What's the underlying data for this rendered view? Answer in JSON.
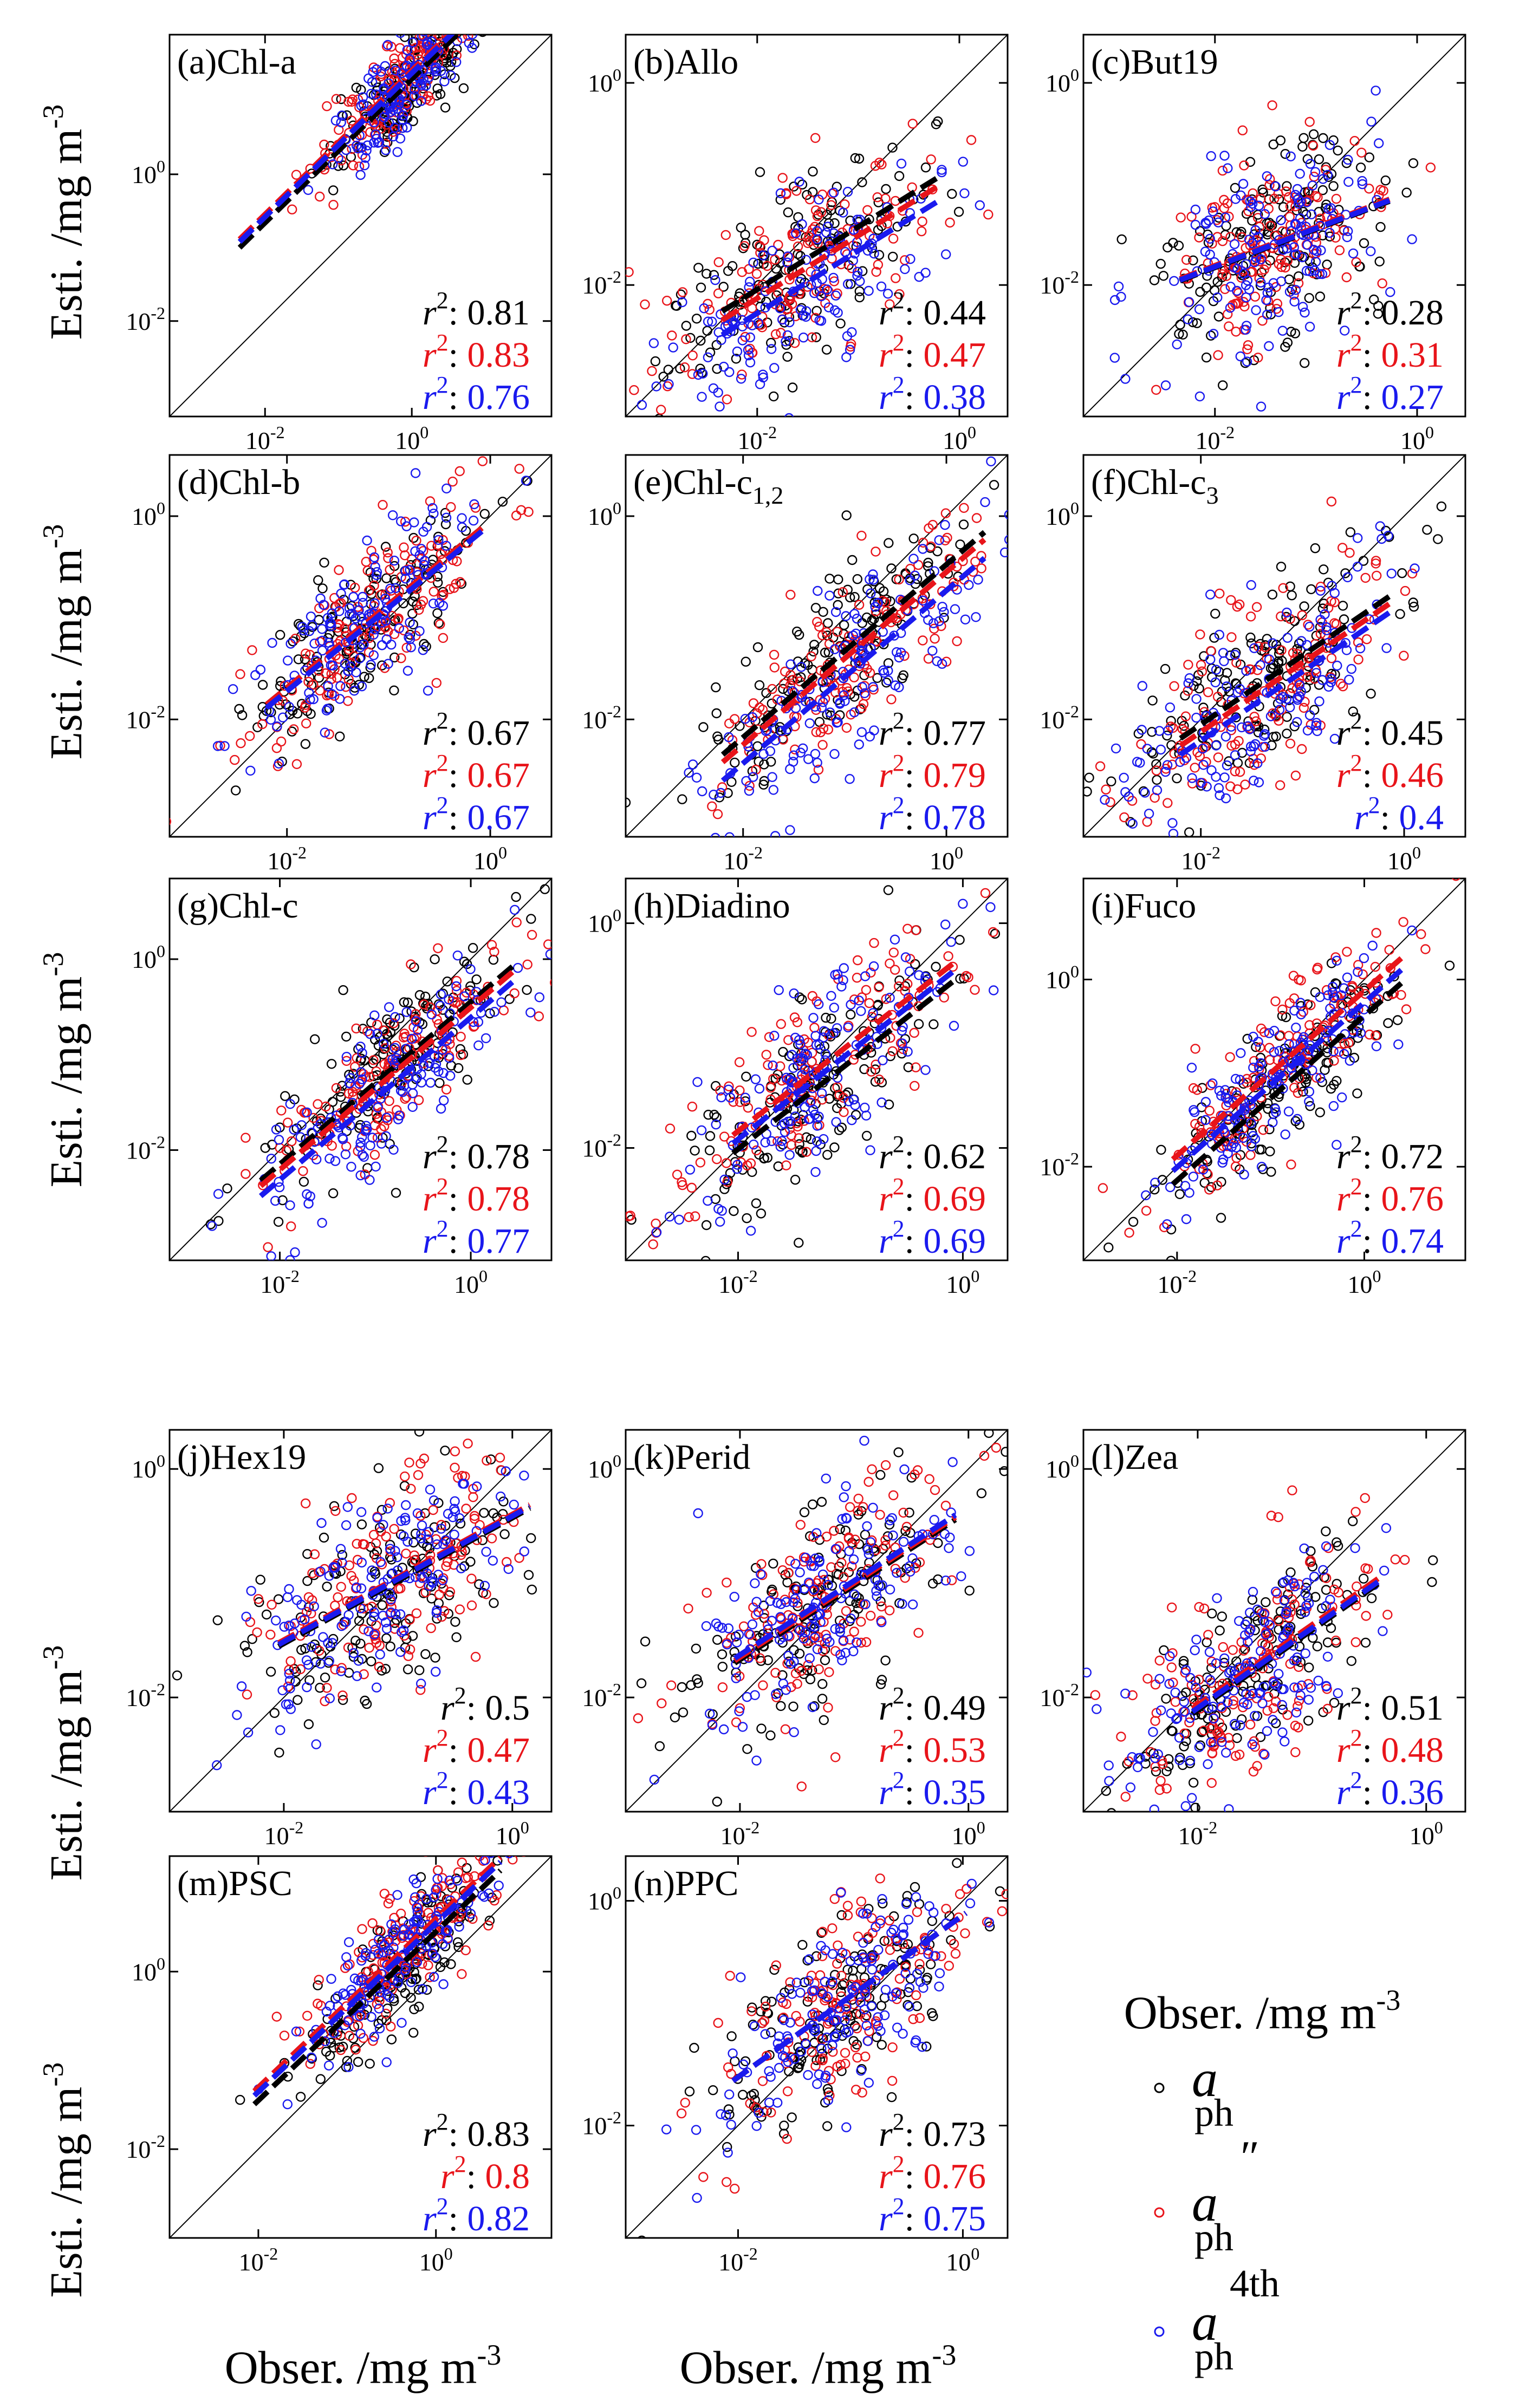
{
  "figure": {
    "y_axis_label": "Esti. /mg m",
    "x_axis_label": "Obser. /mg m",
    "unit_exponent": "-3",
    "colors": {
      "aph": "#000000",
      "aph_dd": "#e8141a",
      "aph_4th": "#1a1aee"
    }
  },
  "legend": {
    "items": [
      {
        "symbol": "a",
        "subscript": "ph",
        "superscript": "",
        "color": "#000000"
      },
      {
        "symbol": "a",
        "subscript": "ph",
        "superscript": "″",
        "color": "#e8141a"
      },
      {
        "symbol": "a",
        "subscript": "ph",
        "superscript": "4th",
        "color": "#1a1aee"
      }
    ]
  },
  "chart_data": [
    {
      "type": "scatter",
      "panel": "(a)",
      "name": "Chl-a",
      "sub": "",
      "lim": [
        0.0005,
        80
      ],
      "x_ticks": [
        "10^-2",
        "10^0"
      ],
      "y_ticks": [
        "10^-2",
        "10^0"
      ],
      "r2_label": "r",
      "r2": [
        "0.81",
        "0.83",
        "0.76"
      ],
      "fit_start": [
        0.1,
        0.13,
        0.12
      ],
      "slope": 0.98,
      "center": 0.8,
      "spread": 0.9
    },
    {
      "type": "scatter",
      "panel": "(b)",
      "name": "Allo",
      "sub": "",
      "lim": [
        0.0005,
        3
      ],
      "x_ticks": [
        "10^-2",
        "10^0"
      ],
      "y_ticks": [
        "10^-2",
        "10^0"
      ],
      "r2_label": "r",
      "r2": [
        "0.44",
        "0.47",
        "0.38"
      ],
      "fit_start": [
        0.0055,
        0.0045,
        0.0032
      ],
      "slope": 0.62,
      "center": 0.025,
      "spread": 1.1
    },
    {
      "type": "scatter",
      "panel": "(c)",
      "name": "But19",
      "sub": "",
      "lim": [
        0.0005,
        3
      ],
      "x_ticks": [
        "10^-2",
        "10^0"
      ],
      "y_ticks": [
        "10^-2",
        "10^0"
      ],
      "r2_label": "r",
      "r2": [
        "0.28",
        "0.31",
        "0.27"
      ],
      "fit_start": [
        0.011,
        0.0115,
        0.0112
      ],
      "slope": 0.38,
      "center": 0.04,
      "spread": 0.9
    },
    {
      "type": "scatter",
      "panel": "(d)",
      "name": "Chl-b",
      "sub": "",
      "lim": [
        0.0007,
        4
      ],
      "x_ticks": [
        "10^-2",
        "10^0"
      ],
      "y_ticks": [
        "10^-2",
        "10^0"
      ],
      "r2_label": "r",
      "r2": [
        "0.67",
        "0.67",
        "0.67"
      ],
      "fit_start": [
        0.014,
        0.014,
        0.013
      ],
      "slope": 0.82,
      "center": 0.06,
      "spread": 0.95
    },
    {
      "type": "scatter",
      "panel": "(e)",
      "name": "Chl-c",
      "sub": "1,2",
      "lim": [
        0.0007,
        4
      ],
      "x_ticks": [
        "10^-2",
        "10^0"
      ],
      "y_ticks": [
        "10^-2",
        "10^0"
      ],
      "r2_label": "r",
      "r2": [
        "0.77",
        "0.79",
        "0.78"
      ],
      "fit_start": [
        0.0045,
        0.0038,
        0.0025
      ],
      "slope": 0.85,
      "center": 0.1,
      "spread": 1.1
    },
    {
      "type": "scatter",
      "panel": "(f)",
      "name": "Chl-c",
      "sub": "3",
      "lim": [
        0.0007,
        4
      ],
      "x_ticks": [
        "10^-2",
        "10^0"
      ],
      "y_ticks": [
        "10^-2",
        "10^0"
      ],
      "r2_label": "r",
      "r2": [
        "0.45",
        "0.46",
        "0.4"
      ],
      "fit_start": [
        0.0065,
        0.0055,
        0.0045
      ],
      "slope": 0.68,
      "center": 0.03,
      "spread": 1.1
    },
    {
      "type": "scatter",
      "panel": "(g)",
      "name": "Chl-c",
      "sub": "",
      "lim": [
        0.0007,
        7
      ],
      "x_ticks": [
        "10^-2",
        "10^0"
      ],
      "y_ticks": [
        "10^-2",
        "10^0"
      ],
      "r2_label": "r",
      "r2": [
        "0.78",
        "0.78",
        "0.77"
      ],
      "fit_start": [
        0.0048,
        0.0042,
        0.0033
      ],
      "slope": 0.85,
      "center": 0.12,
      "spread": 1.1
    },
    {
      "type": "scatter",
      "panel": "(h)",
      "name": "Diadino",
      "sub": "",
      "lim": [
        0.001,
        2.5
      ],
      "x_ticks": [
        "10^-2",
        "10^0"
      ],
      "y_ticks": [
        "10^-2",
        "10^0"
      ],
      "r2_label": "r",
      "r2": [
        "0.62",
        "0.69",
        "0.69"
      ],
      "fit_start": [
        0.009,
        0.013,
        0.011
      ],
      "slope": 0.78,
      "center": 0.05,
      "spread": 1.0
    },
    {
      "type": "scatter",
      "panel": "(i)",
      "name": "Fuco",
      "sub": "",
      "lim": [
        0.001,
        12
      ],
      "x_ticks": [
        "10^-2",
        "10^0"
      ],
      "y_ticks": [
        "10^-2",
        "10^0"
      ],
      "r2_label": "r",
      "r2": [
        "0.72",
        "0.76",
        "0.74"
      ],
      "fit_start": [
        0.0065,
        0.012,
        0.009
      ],
      "slope": 0.88,
      "center": 0.12,
      "spread": 1.1
    },
    {
      "type": "scatter",
      "panel": "(j)",
      "name": "Hex19",
      "sub": "",
      "lim": [
        0.001,
        2.2
      ],
      "x_ticks": [
        "10^-2",
        "10^0"
      ],
      "y_ticks": [
        "10^-2",
        "10^0"
      ],
      "r2_label": "r",
      "r2": [
        "0.5",
        "0.47",
        "0.43"
      ],
      "fit_start": [
        0.028,
        0.03,
        0.029
      ],
      "slope": 0.55,
      "center": 0.08,
      "spread": 1.0
    },
    {
      "type": "scatter",
      "panel": "(k)",
      "name": "Perid",
      "sub": "",
      "lim": [
        0.001,
        2.2
      ],
      "x_ticks": [
        "10^-2",
        "10^0"
      ],
      "y_ticks": [
        "10^-2",
        "10^0"
      ],
      "r2_label": "r",
      "r2": [
        "0.49",
        "0.53",
        "0.35"
      ],
      "fit_start": [
        0.02,
        0.021,
        0.022
      ],
      "slope": 0.65,
      "center": 0.05,
      "spread": 0.95
    },
    {
      "type": "scatter",
      "panel": "(l)",
      "name": "Zea",
      "sub": "",
      "lim": [
        0.001,
        2.2
      ],
      "x_ticks": [
        "10^-2",
        "10^0"
      ],
      "y_ticks": [
        "10^-2",
        "10^0"
      ],
      "r2_label": "r",
      "r2": [
        "0.51",
        "0.48",
        "0.36"
      ],
      "fit_start": [
        0.0072,
        0.008,
        0.0075
      ],
      "slope": 0.7,
      "center": 0.03,
      "spread": 0.9
    },
    {
      "type": "scatter",
      "panel": "(m)",
      "name": "PSC",
      "sub": "",
      "lim": [
        0.001,
        20
      ],
      "x_ticks": [
        "10^-2",
        "10^0"
      ],
      "y_ticks": [
        "10^-2",
        "10^0"
      ],
      "r2_label": "r",
      "r2": [
        "0.83",
        "0.8",
        "0.82"
      ],
      "fit_start": [
        0.032,
        0.045,
        0.04
      ],
      "slope": 0.95,
      "center": 0.4,
      "spread": 0.9
    },
    {
      "type": "scatter",
      "panel": "(n)",
      "name": "PPC",
      "sub": "",
      "lim": [
        0.001,
        2.5
      ],
      "x_ticks": [
        "10^-2",
        "10^0"
      ],
      "y_ticks": [
        "10^-2",
        "10^0"
      ],
      "r2_label": "r",
      "r2": [
        "0.73",
        "0.76",
        "0.75"
      ],
      "fit_start": [
        0.025,
        0.025,
        0.025
      ],
      "slope": 0.72,
      "center": 0.08,
      "spread": 0.9
    }
  ]
}
